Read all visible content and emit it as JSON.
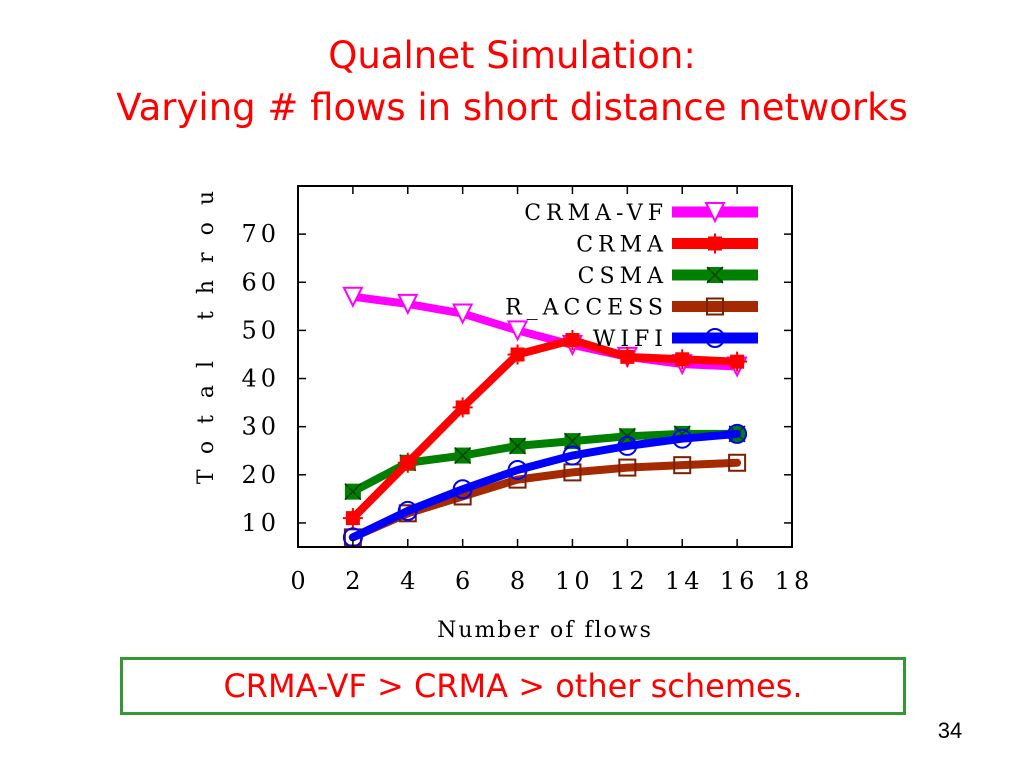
{
  "slide": {
    "title_line_1": "Qualnet Simulation:",
    "title_line_2": "Varying # flows in short distance networks",
    "conclusion": "CRMA-VF > CRMA > other schemes.",
    "slide_number": "34"
  },
  "chart_data": {
    "type": "line",
    "xlabel": "Number of flows",
    "ylabel": "Total throu",
    "xlim": [
      0,
      18
    ],
    "ylim": [
      5,
      80
    ],
    "xticks": [
      0,
      2,
      4,
      6,
      8,
      10,
      12,
      14,
      16,
      18
    ],
    "yticks": [
      10,
      20,
      30,
      40,
      50,
      60,
      70
    ],
    "x": [
      2,
      4,
      6,
      8,
      10,
      12,
      14,
      16
    ],
    "legend_position": "top-right",
    "series": [
      {
        "name": "CRMA-VF",
        "color": "#ff00ff",
        "marker": "triangle-down",
        "values": [
          57,
          55.5,
          53.5,
          50,
          47,
          44.5,
          43,
          42.5
        ]
      },
      {
        "name": "CRMA",
        "color": "#ff0000",
        "marker": "plus",
        "values": [
          11,
          22.5,
          34,
          45,
          48,
          44.5,
          44,
          43.5
        ]
      },
      {
        "name": "CSMA",
        "color": "#008000",
        "marker": "x-square",
        "values": [
          16.5,
          22.5,
          24,
          26,
          27,
          28,
          28.5,
          28.5
        ]
      },
      {
        "name": "R_ACCESS",
        "color": "#a52a00",
        "marker": "square",
        "values": [
          7,
          12,
          15.5,
          19,
          20.5,
          21.5,
          22,
          22.5
        ]
      },
      {
        "name": "WIFI",
        "color": "#0000ff",
        "marker": "circle",
        "values": [
          7,
          12.5,
          17,
          21,
          24,
          26,
          27.5,
          28.5
        ]
      }
    ]
  }
}
